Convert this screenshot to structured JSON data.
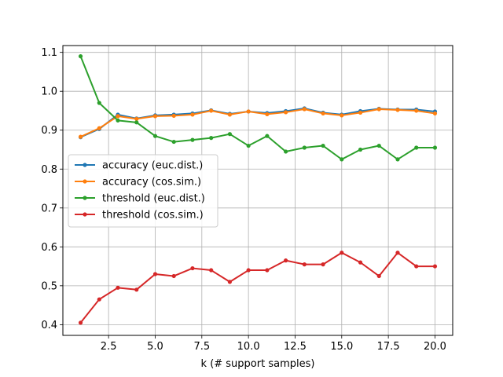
{
  "chart_data": {
    "type": "line",
    "title": "",
    "xlabel": "k (# support samples)",
    "ylabel": "",
    "xlim": [
      0.05,
      20.95
    ],
    "ylim": [
      0.3725,
      1.1175
    ],
    "xticks": [
      2.5,
      5.0,
      7.5,
      10.0,
      12.5,
      15.0,
      17.5,
      20.0
    ],
    "xtick_labels": [
      "2.5",
      "5.0",
      "7.5",
      "10.0",
      "12.5",
      "15.0",
      "17.5",
      "20.0"
    ],
    "yticks": [
      0.4,
      0.5,
      0.6,
      0.7,
      0.8,
      0.9,
      1.0,
      1.1
    ],
    "ytick_labels": [
      "0.4",
      "0.5",
      "0.6",
      "0.7",
      "0.8",
      "0.9",
      "1.0",
      "1.1"
    ],
    "grid": true,
    "legend_position": "center-left",
    "x": [
      1,
      2,
      3,
      4,
      5,
      6,
      7,
      8,
      9,
      10,
      11,
      12,
      13,
      14,
      15,
      16,
      17,
      18,
      19,
      20
    ],
    "series": [
      {
        "name": "accuracy (euc.dist.)",
        "color": "#1f77b4",
        "values": [
          0.882,
          0.903,
          0.94,
          0.93,
          0.938,
          0.94,
          0.943,
          0.951,
          0.942,
          0.948,
          0.944,
          0.949,
          0.956,
          0.945,
          0.94,
          0.949,
          0.955,
          0.953,
          0.953,
          0.948
        ]
      },
      {
        "name": "accuracy (cos.sim.)",
        "color": "#ff7f0e",
        "values": [
          0.883,
          0.905,
          0.936,
          0.929,
          0.936,
          0.937,
          0.94,
          0.95,
          0.94,
          0.948,
          0.941,
          0.946,
          0.954,
          0.943,
          0.938,
          0.945,
          0.954,
          0.952,
          0.95,
          0.943
        ]
      },
      {
        "name": "threshold (euc.dist.)",
        "color": "#2ca02c",
        "values": [
          1.09,
          0.97,
          0.925,
          0.92,
          0.885,
          0.87,
          0.875,
          0.88,
          0.89,
          0.86,
          0.885,
          0.845,
          0.855,
          0.86,
          0.825,
          0.85,
          0.86,
          0.825,
          0.855,
          0.855
        ]
      },
      {
        "name": "threshold (cos.sim.)",
        "color": "#d62728",
        "values": [
          0.405,
          0.465,
          0.495,
          0.49,
          0.53,
          0.525,
          0.545,
          0.54,
          0.51,
          0.54,
          0.54,
          0.565,
          0.555,
          0.555,
          0.585,
          0.56,
          0.525,
          0.585,
          0.55,
          0.55
        ]
      }
    ]
  }
}
